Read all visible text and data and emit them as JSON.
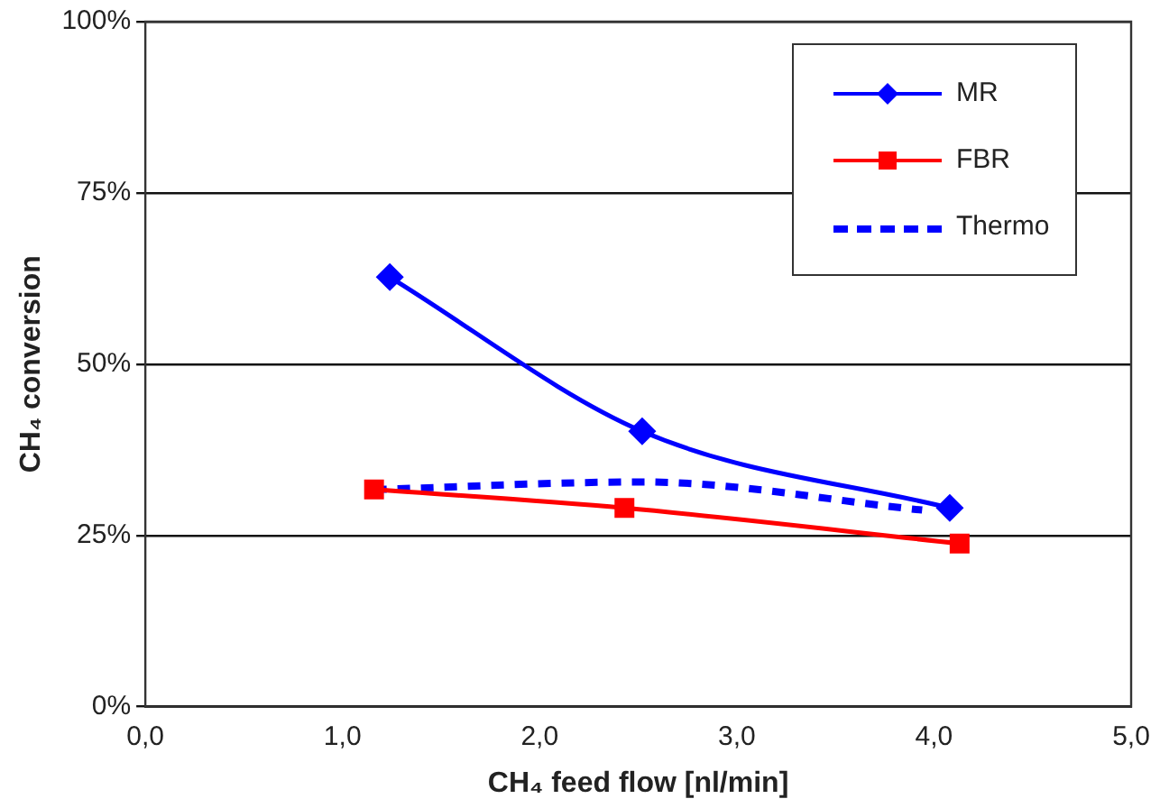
{
  "chart_data": {
    "type": "line",
    "xlabel": "CH₄ feed flow [nl/min]",
    "ylabel": "CH₄ conversion",
    "xlim": [
      0,
      5
    ],
    "xticks": [
      {
        "value": 0,
        "label": "0,0"
      },
      {
        "value": 1,
        "label": "1,0"
      },
      {
        "value": 2,
        "label": "2,0"
      },
      {
        "value": 3,
        "label": "3,0"
      },
      {
        "value": 4,
        "label": "4,0"
      },
      {
        "value": 5,
        "label": "5,0"
      }
    ],
    "ylim": [
      0,
      100
    ],
    "yticks": [
      {
        "value": 0,
        "label": "0%"
      },
      {
        "value": 25,
        "label": "25%"
      },
      {
        "value": 50,
        "label": "50%"
      },
      {
        "value": 75,
        "label": "75%"
      },
      {
        "value": 100,
        "label": "100%"
      }
    ],
    "grid": "y",
    "legend": "top right",
    "series": [
      {
        "name": "MR",
        "color": "#0000ff",
        "marker": "diamond",
        "line_style": "solid",
        "x": [
          1.24,
          2.52,
          4.08
        ],
        "values": [
          62.7,
          40.2,
          29.0
        ]
      },
      {
        "name": "FBR",
        "color": "#ff0000",
        "marker": "square",
        "line_style": "solid",
        "x": [
          1.16,
          2.43,
          4.13
        ],
        "values": [
          31.7,
          29.0,
          23.8
        ]
      },
      {
        "name": "Thermo",
        "color": "#0000ff",
        "marker": "none",
        "line_style": "dashed",
        "x": [
          1.16,
          2.52,
          3.94
        ],
        "values": [
          31.7,
          32.8,
          28.7
        ]
      }
    ]
  }
}
